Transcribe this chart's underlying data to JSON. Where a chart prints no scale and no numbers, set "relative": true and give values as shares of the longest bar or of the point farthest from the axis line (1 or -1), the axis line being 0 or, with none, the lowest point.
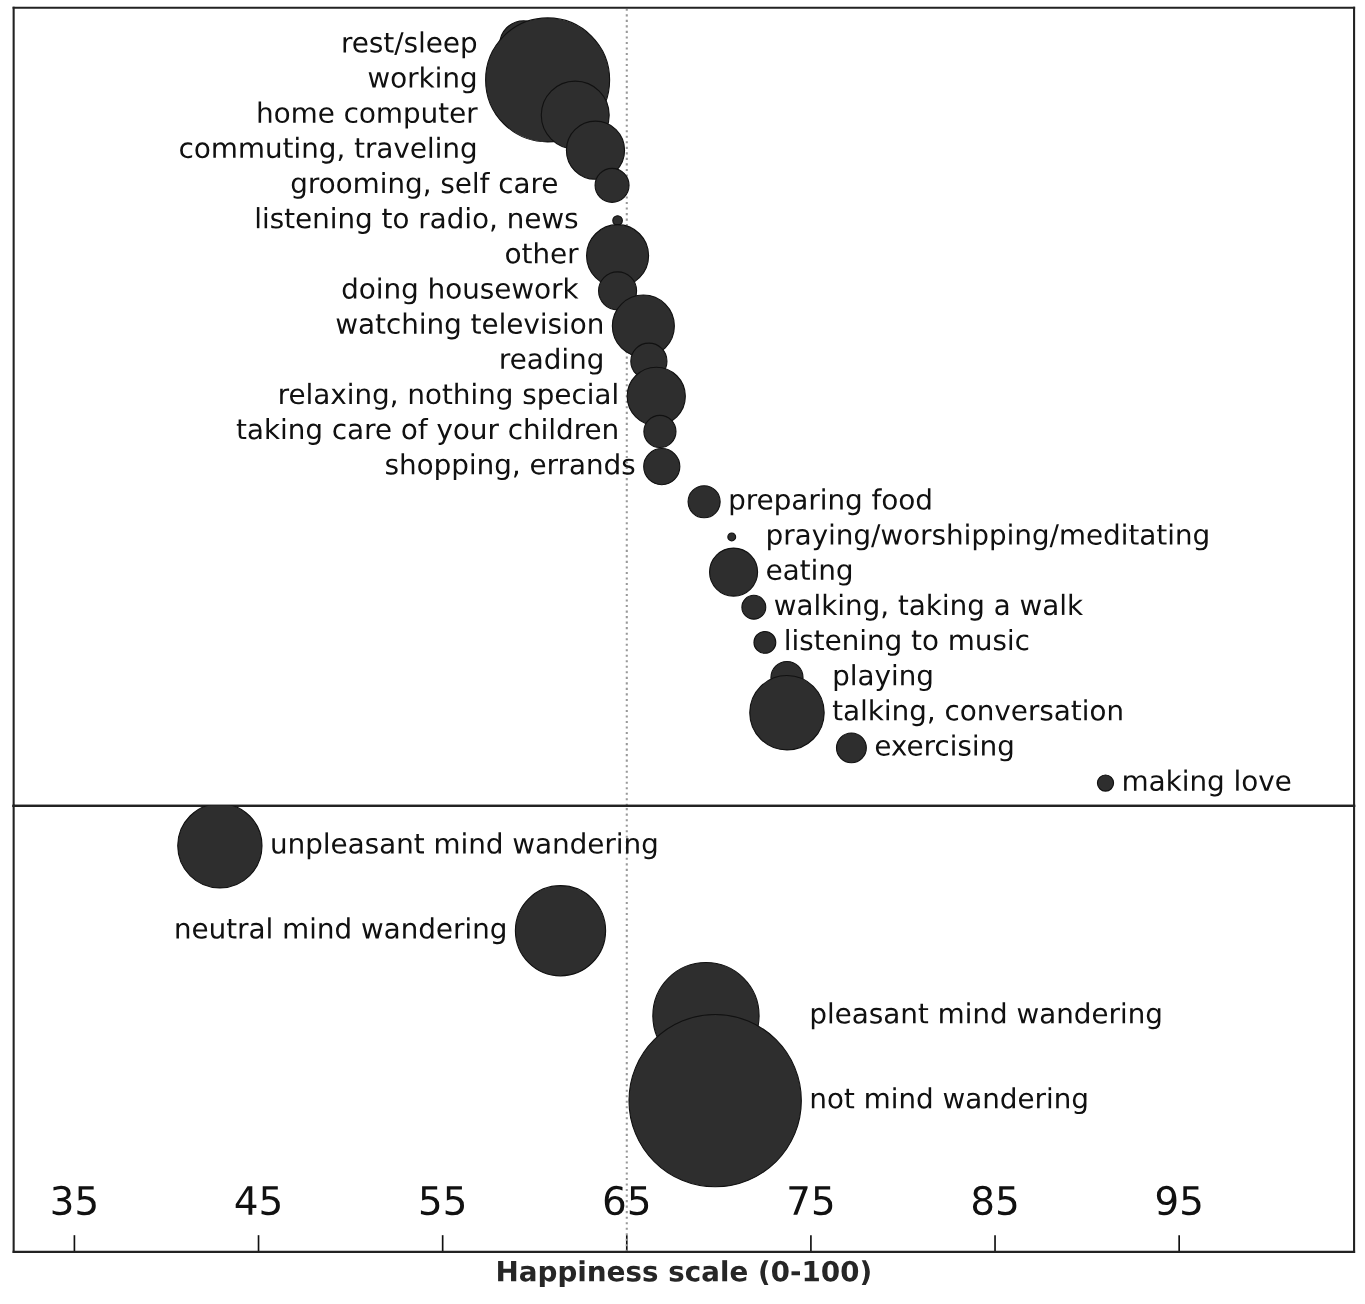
{
  "chart_data": [
    {
      "type": "bubble",
      "orientation": "horizontal",
      "tick_labels": false,
      "marker": "circle",
      "grid": false,
      "legend": false,
      "categories": [
        "rest/sleep",
        "working",
        "home computer",
        "commuting, traveling",
        "grooming, self care",
        "listening to radio, news",
        "other",
        "doing housework",
        "watching television",
        "reading",
        "relaxing, nothing special",
        "taking care of your children",
        "shopping, errands",
        "preparing food",
        "praying/worshipping/meditating",
        "eating",
        "walking, taking a walk",
        "listening to music",
        "playing",
        "talking, conversation",
        "exercising",
        "making love"
      ],
      "series": [
        {
          "color": "#2e2e2e",
          "values": [
            59.4,
            60.7,
            62.2,
            63.3,
            64.2,
            64.5,
            64.5,
            64.5,
            65.9,
            66.2,
            66.6,
            66.8,
            66.9,
            69.2,
            70.7,
            70.8,
            71.9,
            72.5,
            73.7,
            73.7,
            77.2,
            91.0
          ],
          "sizes": [
            0.15,
            1,
            0.3,
            0.22,
            0.075,
            0.006,
            0.25,
            0.094,
            0.25,
            0.085,
            0.22,
            0.067,
            0.085,
            0.067,
            0.004,
            0.15,
            0.037,
            0.031,
            0.067,
            0.36,
            0.058,
            0.017
          ]
        }
      ],
      "relative": true,
      "xlim": [
        31.7,
        104.5
      ],
      "ref_lines": [
        {
          "axis": "x",
          "value": 65,
          "color": "#999999",
          "line_style": "dotted"
        }
      ]
    },
    {
      "type": "bubble",
      "orientation": "horizontal",
      "tick_labels": "x",
      "marker": "circle",
      "grid": false,
      "legend": false,
      "categories": [
        "unpleasant mind wandering",
        "neutral mind wandering",
        "pleasant mind wandering",
        "not mind wandering"
      ],
      "series": [
        {
          "color": "#2e2e2e",
          "values": [
            42.9,
            61.4,
            69.3,
            69.8
          ],
          "sizes": [
            0.239,
            0.274,
            0.38,
            1
          ]
        }
      ],
      "xlim": [
        31.7,
        104.5
      ],
      "xticks": [
        35,
        45,
        55,
        65,
        75,
        85,
        95
      ],
      "xlabel": "Happiness scale (0-100)",
      "ref_lines": [
        {
          "axis": "x",
          "value": 65,
          "color": "#999999",
          "line_style": "dotted"
        }
      ]
    }
  ]
}
